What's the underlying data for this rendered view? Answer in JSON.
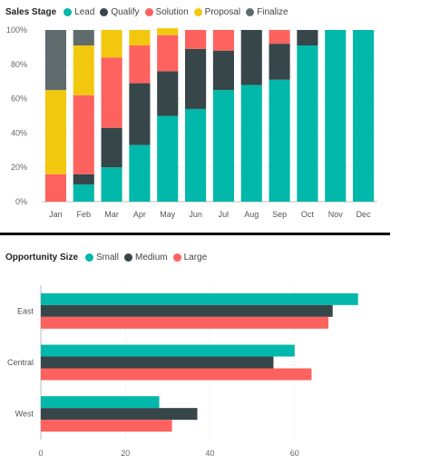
{
  "charts": {
    "colors": {
      "Lead": "#01B8AA",
      "Qualify": "#374649",
      "Solution": "#FD625E",
      "Proposal": "#F2C80F",
      "Finalize": "#5F6B6D",
      "Small": "#01B8AA",
      "Medium": "#374649",
      "Large": "#FD625E"
    }
  },
  "chart_data": [
    {
      "type": "bar",
      "orientation": "vertical",
      "stacked": "percent",
      "legend_title": "Sales Stage",
      "legend_position": "top-left",
      "categories": [
        "Jan",
        "Feb",
        "Mar",
        "Apr",
        "May",
        "Jun",
        "Jul",
        "Aug",
        "Sep",
        "Oct",
        "Nov",
        "Dec"
      ],
      "y_ticks": [
        "0%",
        "20%",
        "40%",
        "60%",
        "80%",
        "100%"
      ],
      "ylim": [
        0,
        100
      ],
      "grid": true,
      "series": [
        {
          "name": "Lead",
          "values": [
            0,
            10,
            20,
            33,
            50,
            54,
            65,
            68,
            71,
            91,
            100,
            100
          ]
        },
        {
          "name": "Qualify",
          "values": [
            0,
            6,
            23,
            36,
            26,
            35,
            23,
            32,
            21,
            9,
            0,
            0
          ]
        },
        {
          "name": "Solution",
          "values": [
            16,
            46,
            41,
            22,
            21,
            11,
            12,
            0,
            8,
            0,
            0,
            0
          ]
        },
        {
          "name": "Proposal",
          "values": [
            49,
            29,
            16,
            9,
            4,
            0,
            0,
            0,
            0,
            0,
            0,
            0
          ]
        },
        {
          "name": "Finalize",
          "values": [
            35,
            9,
            0,
            0,
            0,
            0,
            0,
            0,
            0,
            0,
            0,
            0
          ]
        }
      ]
    },
    {
      "type": "bar",
      "orientation": "horizontal",
      "stacked": false,
      "legend_title": "Opportunity Size",
      "legend_position": "top-left",
      "categories": [
        "East",
        "Central",
        "West"
      ],
      "x_ticks": [
        "0",
        "20",
        "40",
        "60"
      ],
      "xlim": [
        0,
        80
      ],
      "grid": true,
      "series": [
        {
          "name": "Small",
          "values": [
            75,
            60,
            28
          ]
        },
        {
          "name": "Medium",
          "values": [
            69,
            55,
            37
          ]
        },
        {
          "name": "Large",
          "values": [
            68,
            64,
            31
          ]
        }
      ]
    }
  ]
}
